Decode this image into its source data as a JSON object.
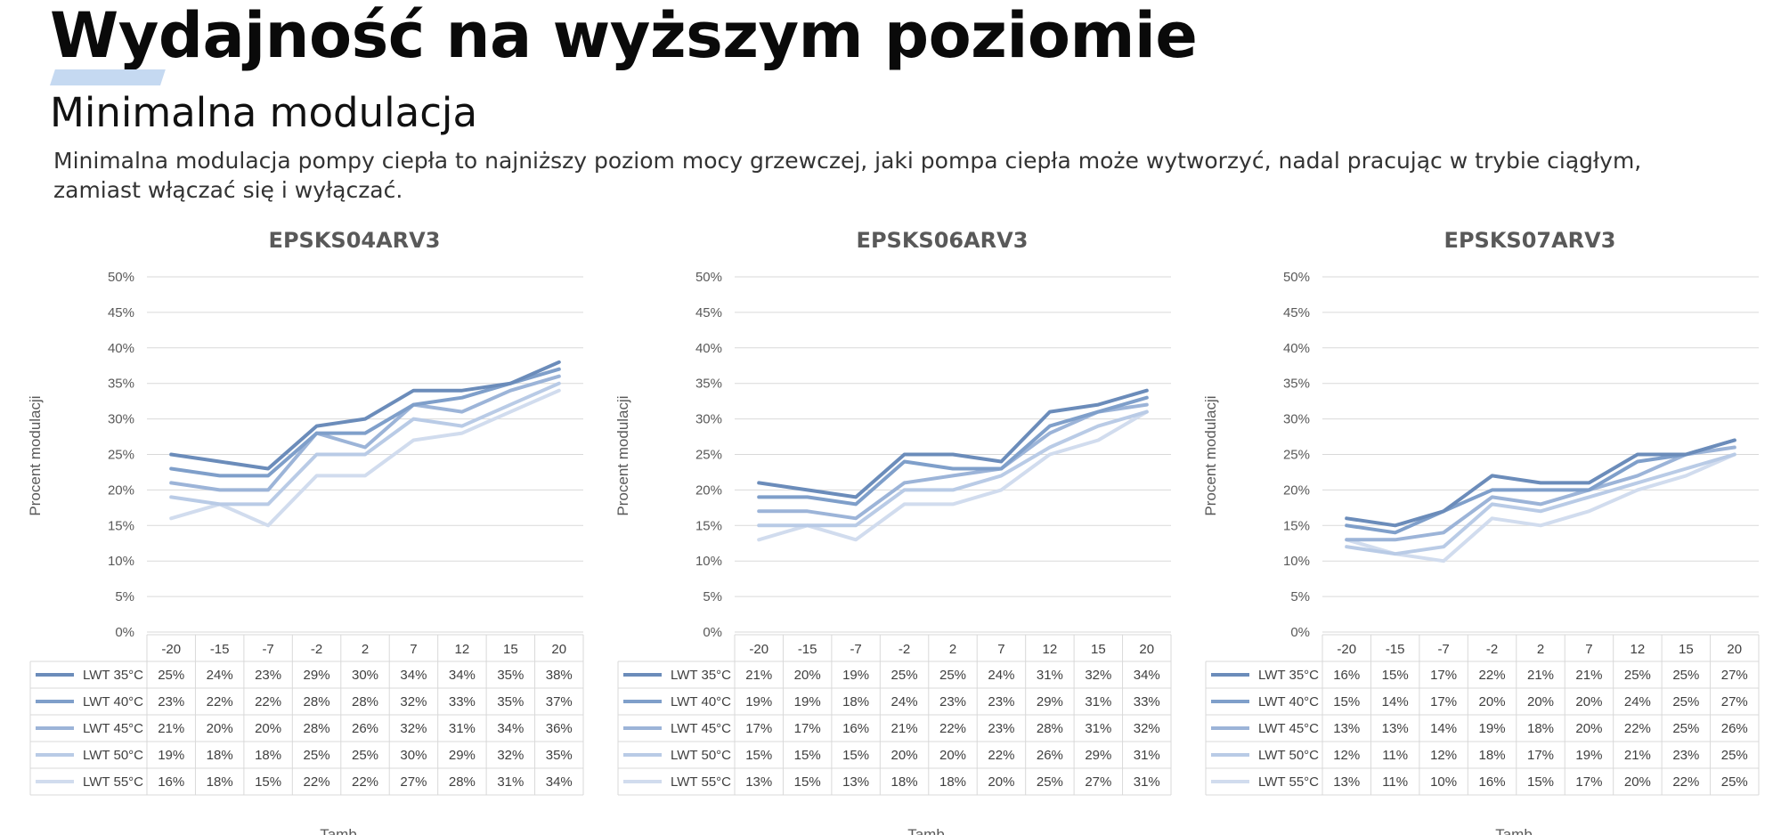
{
  "page": {
    "title": "Wydajność na wyższym poziomie",
    "subtitle": "Minimalna modulacja",
    "description": "Minimalna modulacja pompy ciepła to najniższy poziom mocy grzewczej, jaki pompa ciepła może wytworzyć, nadal pracując w trybie ciągłym, zamiast włączać się i wyłączać."
  },
  "colors": {
    "series": [
      "#6b8cba",
      "#7f9fca",
      "#9cb4d8",
      "#b9cbe6",
      "#d1dcee"
    ],
    "accent": "#c5d9f1",
    "grid": "#d9d9d9"
  },
  "chart_data": [
    {
      "type": "line",
      "title": "EPSKS04ARV3",
      "xlabel": "Tamb",
      "ylabel": "Procent modulacji",
      "ylim": [
        0,
        50
      ],
      "yticks": [
        "0%",
        "5%",
        "10%",
        "15%",
        "20%",
        "25%",
        "30%",
        "35%",
        "40%",
        "45%",
        "50%"
      ],
      "grid": true,
      "legend": "data-table",
      "categories": [
        "-20",
        "-15",
        "-7",
        "-2",
        "2",
        "7",
        "12",
        "15",
        "20"
      ],
      "series": [
        {
          "name": "LWT 35°C",
          "values": [
            25,
            24,
            23,
            29,
            30,
            34,
            34,
            35,
            38
          ],
          "labels": [
            "25%",
            "24%",
            "23%",
            "29%",
            "30%",
            "34%",
            "34%",
            "35%",
            "38%"
          ]
        },
        {
          "name": "LWT 40°C",
          "values": [
            23,
            22,
            22,
            28,
            28,
            32,
            33,
            35,
            37
          ],
          "labels": [
            "23%",
            "22%",
            "22%",
            "28%",
            "28%",
            "32%",
            "33%",
            "35%",
            "37%"
          ]
        },
        {
          "name": "LWT 45°C",
          "values": [
            21,
            20,
            20,
            28,
            26,
            32,
            31,
            34,
            36
          ],
          "labels": [
            "21%",
            "20%",
            "20%",
            "28%",
            "26%",
            "32%",
            "31%",
            "34%",
            "36%"
          ]
        },
        {
          "name": "LWT 50°C",
          "values": [
            19,
            18,
            18,
            25,
            25,
            30,
            29,
            32,
            35
          ],
          "labels": [
            "19%",
            "18%",
            "18%",
            "25%",
            "25%",
            "30%",
            "29%",
            "32%",
            "35%"
          ]
        },
        {
          "name": "LWT 55°C",
          "values": [
            16,
            18,
            15,
            22,
            22,
            27,
            28,
            31,
            34
          ],
          "labels": [
            "16%",
            "18%",
            "15%",
            "22%",
            "22%",
            "27%",
            "28%",
            "31%",
            "34%"
          ]
        }
      ]
    },
    {
      "type": "line",
      "title": "EPSKS06ARV3",
      "xlabel": "Tamb",
      "ylabel": "Procent modulacji",
      "ylim": [
        0,
        50
      ],
      "yticks": [
        "0%",
        "5%",
        "10%",
        "15%",
        "20%",
        "25%",
        "30%",
        "35%",
        "40%",
        "45%",
        "50%"
      ],
      "grid": true,
      "legend": "data-table",
      "categories": [
        "-20",
        "-15",
        "-7",
        "-2",
        "2",
        "7",
        "12",
        "15",
        "20"
      ],
      "series": [
        {
          "name": "LWT 35°C",
          "values": [
            21,
            20,
            19,
            25,
            25,
            24,
            31,
            32,
            34
          ],
          "labels": [
            "21%",
            "20%",
            "19%",
            "25%",
            "25%",
            "24%",
            "31%",
            "32%",
            "34%"
          ]
        },
        {
          "name": "LWT 40°C",
          "values": [
            19,
            19,
            18,
            24,
            23,
            23,
            29,
            31,
            33
          ],
          "labels": [
            "19%",
            "19%",
            "18%",
            "24%",
            "23%",
            "23%",
            "29%",
            "31%",
            "33%"
          ]
        },
        {
          "name": "LWT 45°C",
          "values": [
            17,
            17,
            16,
            21,
            22,
            23,
            28,
            31,
            32
          ],
          "labels": [
            "17%",
            "17%",
            "16%",
            "21%",
            "22%",
            "23%",
            "28%",
            "31%",
            "32%"
          ]
        },
        {
          "name": "LWT 50°C",
          "values": [
            15,
            15,
            15,
            20,
            20,
            22,
            26,
            29,
            31
          ],
          "labels": [
            "15%",
            "15%",
            "15%",
            "20%",
            "20%",
            "22%",
            "26%",
            "29%",
            "31%"
          ]
        },
        {
          "name": "LWT 55°C",
          "values": [
            13,
            15,
            13,
            18,
            18,
            20,
            25,
            27,
            31
          ],
          "labels": [
            "13%",
            "15%",
            "13%",
            "18%",
            "18%",
            "20%",
            "25%",
            "27%",
            "31%"
          ]
        }
      ]
    },
    {
      "type": "line",
      "title": "EPSKS07ARV3",
      "xlabel": "Tamb",
      "ylabel": "Procent modulacji",
      "ylim": [
        0,
        50
      ],
      "yticks": [
        "0%",
        "5%",
        "10%",
        "15%",
        "20%",
        "25%",
        "30%",
        "35%",
        "40%",
        "45%",
        "50%"
      ],
      "grid": true,
      "legend": "data-table",
      "categories": [
        "-20",
        "-15",
        "-7",
        "-2",
        "2",
        "7",
        "12",
        "15",
        "20"
      ],
      "series": [
        {
          "name": "LWT 35°C",
          "values": [
            16,
            15,
            17,
            22,
            21,
            21,
            25,
            25,
            27
          ],
          "labels": [
            "16%",
            "15%",
            "17%",
            "22%",
            "21%",
            "21%",
            "25%",
            "25%",
            "27%"
          ]
        },
        {
          "name": "LWT 40°C",
          "values": [
            15,
            14,
            17,
            20,
            20,
            20,
            24,
            25,
            27
          ],
          "labels": [
            "15%",
            "14%",
            "17%",
            "20%",
            "20%",
            "20%",
            "24%",
            "25%",
            "27%"
          ]
        },
        {
          "name": "LWT 45°C",
          "values": [
            13,
            13,
            14,
            19,
            18,
            20,
            22,
            25,
            26
          ],
          "labels": [
            "13%",
            "13%",
            "14%",
            "19%",
            "18%",
            "20%",
            "22%",
            "25%",
            "26%"
          ]
        },
        {
          "name": "LWT 50°C",
          "values": [
            12,
            11,
            12,
            18,
            17,
            19,
            21,
            23,
            25
          ],
          "labels": [
            "12%",
            "11%",
            "12%",
            "18%",
            "17%",
            "19%",
            "21%",
            "23%",
            "25%"
          ]
        },
        {
          "name": "LWT 55°C",
          "values": [
            13,
            11,
            10,
            16,
            15,
            17,
            20,
            22,
            25
          ],
          "labels": [
            "13%",
            "11%",
            "10%",
            "16%",
            "15%",
            "17%",
            "20%",
            "22%",
            "25%"
          ]
        }
      ]
    }
  ]
}
